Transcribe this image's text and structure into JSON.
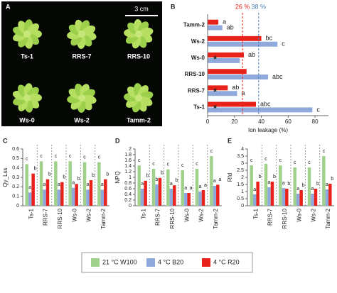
{
  "panel_a": {
    "label": "A",
    "scale": "3 cm",
    "plants": [
      "Ts-1",
      "RRS-7",
      "RRS-10",
      "Ws-0",
      "Ws-2",
      "Tamm-2"
    ]
  },
  "chart_data": [
    {
      "type": "hbar",
      "panel": "B",
      "x_label": "Ion leakage (%)",
      "categories": [
        "Tamm-2",
        "Ws-2",
        "Ws-0",
        "RRS-10",
        "RRS-7",
        "Ts-1"
      ],
      "series": [
        {
          "color": "#e8221b",
          "values": [
            8,
            40,
            27,
            29,
            15,
            36
          ],
          "letters": [
            "a",
            "bc",
            "ab",
            null,
            "ab",
            "abc"
          ]
        },
        {
          "color": "#8fa9dc",
          "values": [
            11,
            52,
            24,
            45,
            22,
            78
          ],
          "letters": [
            "ab",
            "c",
            null,
            "abc",
            "a",
            "c"
          ]
        }
      ],
      "asterisks": [
        null,
        null,
        "*",
        null,
        "*",
        "*"
      ],
      "reference_lines": [
        {
          "value": 26,
          "label": "26 %",
          "color": "#e8221b"
        },
        {
          "value": 38,
          "label": "38 %",
          "color": "#4a7ebb"
        }
      ],
      "xlim": [
        0,
        90
      ],
      "xticks": [
        0,
        20,
        40,
        60,
        80
      ]
    },
    {
      "type": "bar",
      "panel": "C",
      "y_label": "Qy_Lss",
      "categories": [
        "Ts-1",
        "RRS-7",
        "RRS-10",
        "Ws-0",
        "Ws-2",
        "Tamm-2"
      ],
      "series": [
        {
          "name": "21 °C W100",
          "color": "#9fd18b",
          "values": [
            0.44,
            0.47,
            0.47,
            0.47,
            0.46,
            0.46
          ],
          "letters": [
            "c",
            "c",
            "c",
            "c",
            "c",
            "c"
          ]
        },
        {
          "name": "4 °C B20",
          "color": "#8fa9dc",
          "values": [
            0.14,
            0.17,
            0.17,
            0.19,
            0.17,
            0.17
          ],
          "letters": [
            "a",
            "a",
            "a",
            "a",
            "a",
            "a"
          ]
        },
        {
          "name": "4 °C R20",
          "color": "#e8221b",
          "values": [
            0.34,
            0.28,
            0.25,
            0.23,
            0.27,
            0.28
          ],
          "letters": [
            "b",
            "b",
            "b",
            "b",
            "b",
            "b"
          ]
        }
      ],
      "ylim": [
        0,
        0.6
      ],
      "yticks": [
        0,
        0.1,
        0.2,
        0.3,
        0.4,
        0.5,
        0.6
      ]
    },
    {
      "type": "bar",
      "panel": "D",
      "y_label": "NPQ",
      "categories": [
        "Ts-1",
        "RRS-7",
        "RRS-10",
        "Ws-0",
        "Ws-2",
        "Tamm-2"
      ],
      "series": [
        {
          "color": "#9fd18b",
          "values": [
            1.42,
            1.3,
            1.28,
            1.25,
            1.3,
            1.75
          ],
          "letters": [
            "c",
            "c",
            "c",
            "c",
            "c",
            "c"
          ]
        },
        {
          "color": "#8fa9dc",
          "values": [
            0.6,
            0.75,
            0.6,
            0.45,
            0.5,
            0.7
          ],
          "letters": [
            "a",
            "b",
            "a",
            "a",
            "a",
            "a"
          ]
        },
        {
          "color": "#e8221b",
          "values": [
            0.88,
            0.98,
            0.72,
            0.45,
            0.55,
            0.74
          ],
          "letters": [
            "b",
            "b",
            "b",
            "a",
            "a",
            "a"
          ]
        }
      ],
      "ylim": [
        0,
        2
      ],
      "yticks": [
        0,
        0.2,
        0.4,
        0.6,
        0.8,
        1,
        1.2,
        1.4,
        1.6,
        1.8,
        2
      ]
    },
    {
      "type": "bar",
      "panel": "E",
      "y_label": "Rfd",
      "categories": [
        "Ts-1",
        "RRS-7",
        "RRS-10",
        "Ws-0",
        "Ws-2",
        "Tamm-2"
      ],
      "series": [
        {
          "color": "#9fd18b",
          "values": [
            2.85,
            2.95,
            2.85,
            2.7,
            2.7,
            3.5
          ],
          "letters": [
            "c",
            "c",
            "c",
            "c",
            "c",
            "c"
          ]
        },
        {
          "color": "#8fa9dc",
          "values": [
            0.8,
            1.3,
            1.25,
            0.85,
            0.85,
            1.15
          ],
          "letters": [
            "a",
            "a",
            "a",
            "a",
            "a",
            "a"
          ]
        },
        {
          "color": "#e8221b",
          "values": [
            1.7,
            1.7,
            1.2,
            1.1,
            1.2,
            1.55
          ],
          "letters": [
            "b",
            "b",
            "b",
            "b",
            "b",
            "b"
          ]
        }
      ],
      "ylim": [
        0,
        4
      ],
      "yticks": [
        0,
        0.5,
        1,
        1.5,
        2,
        2.5,
        3,
        3.5,
        4
      ]
    }
  ]
}
